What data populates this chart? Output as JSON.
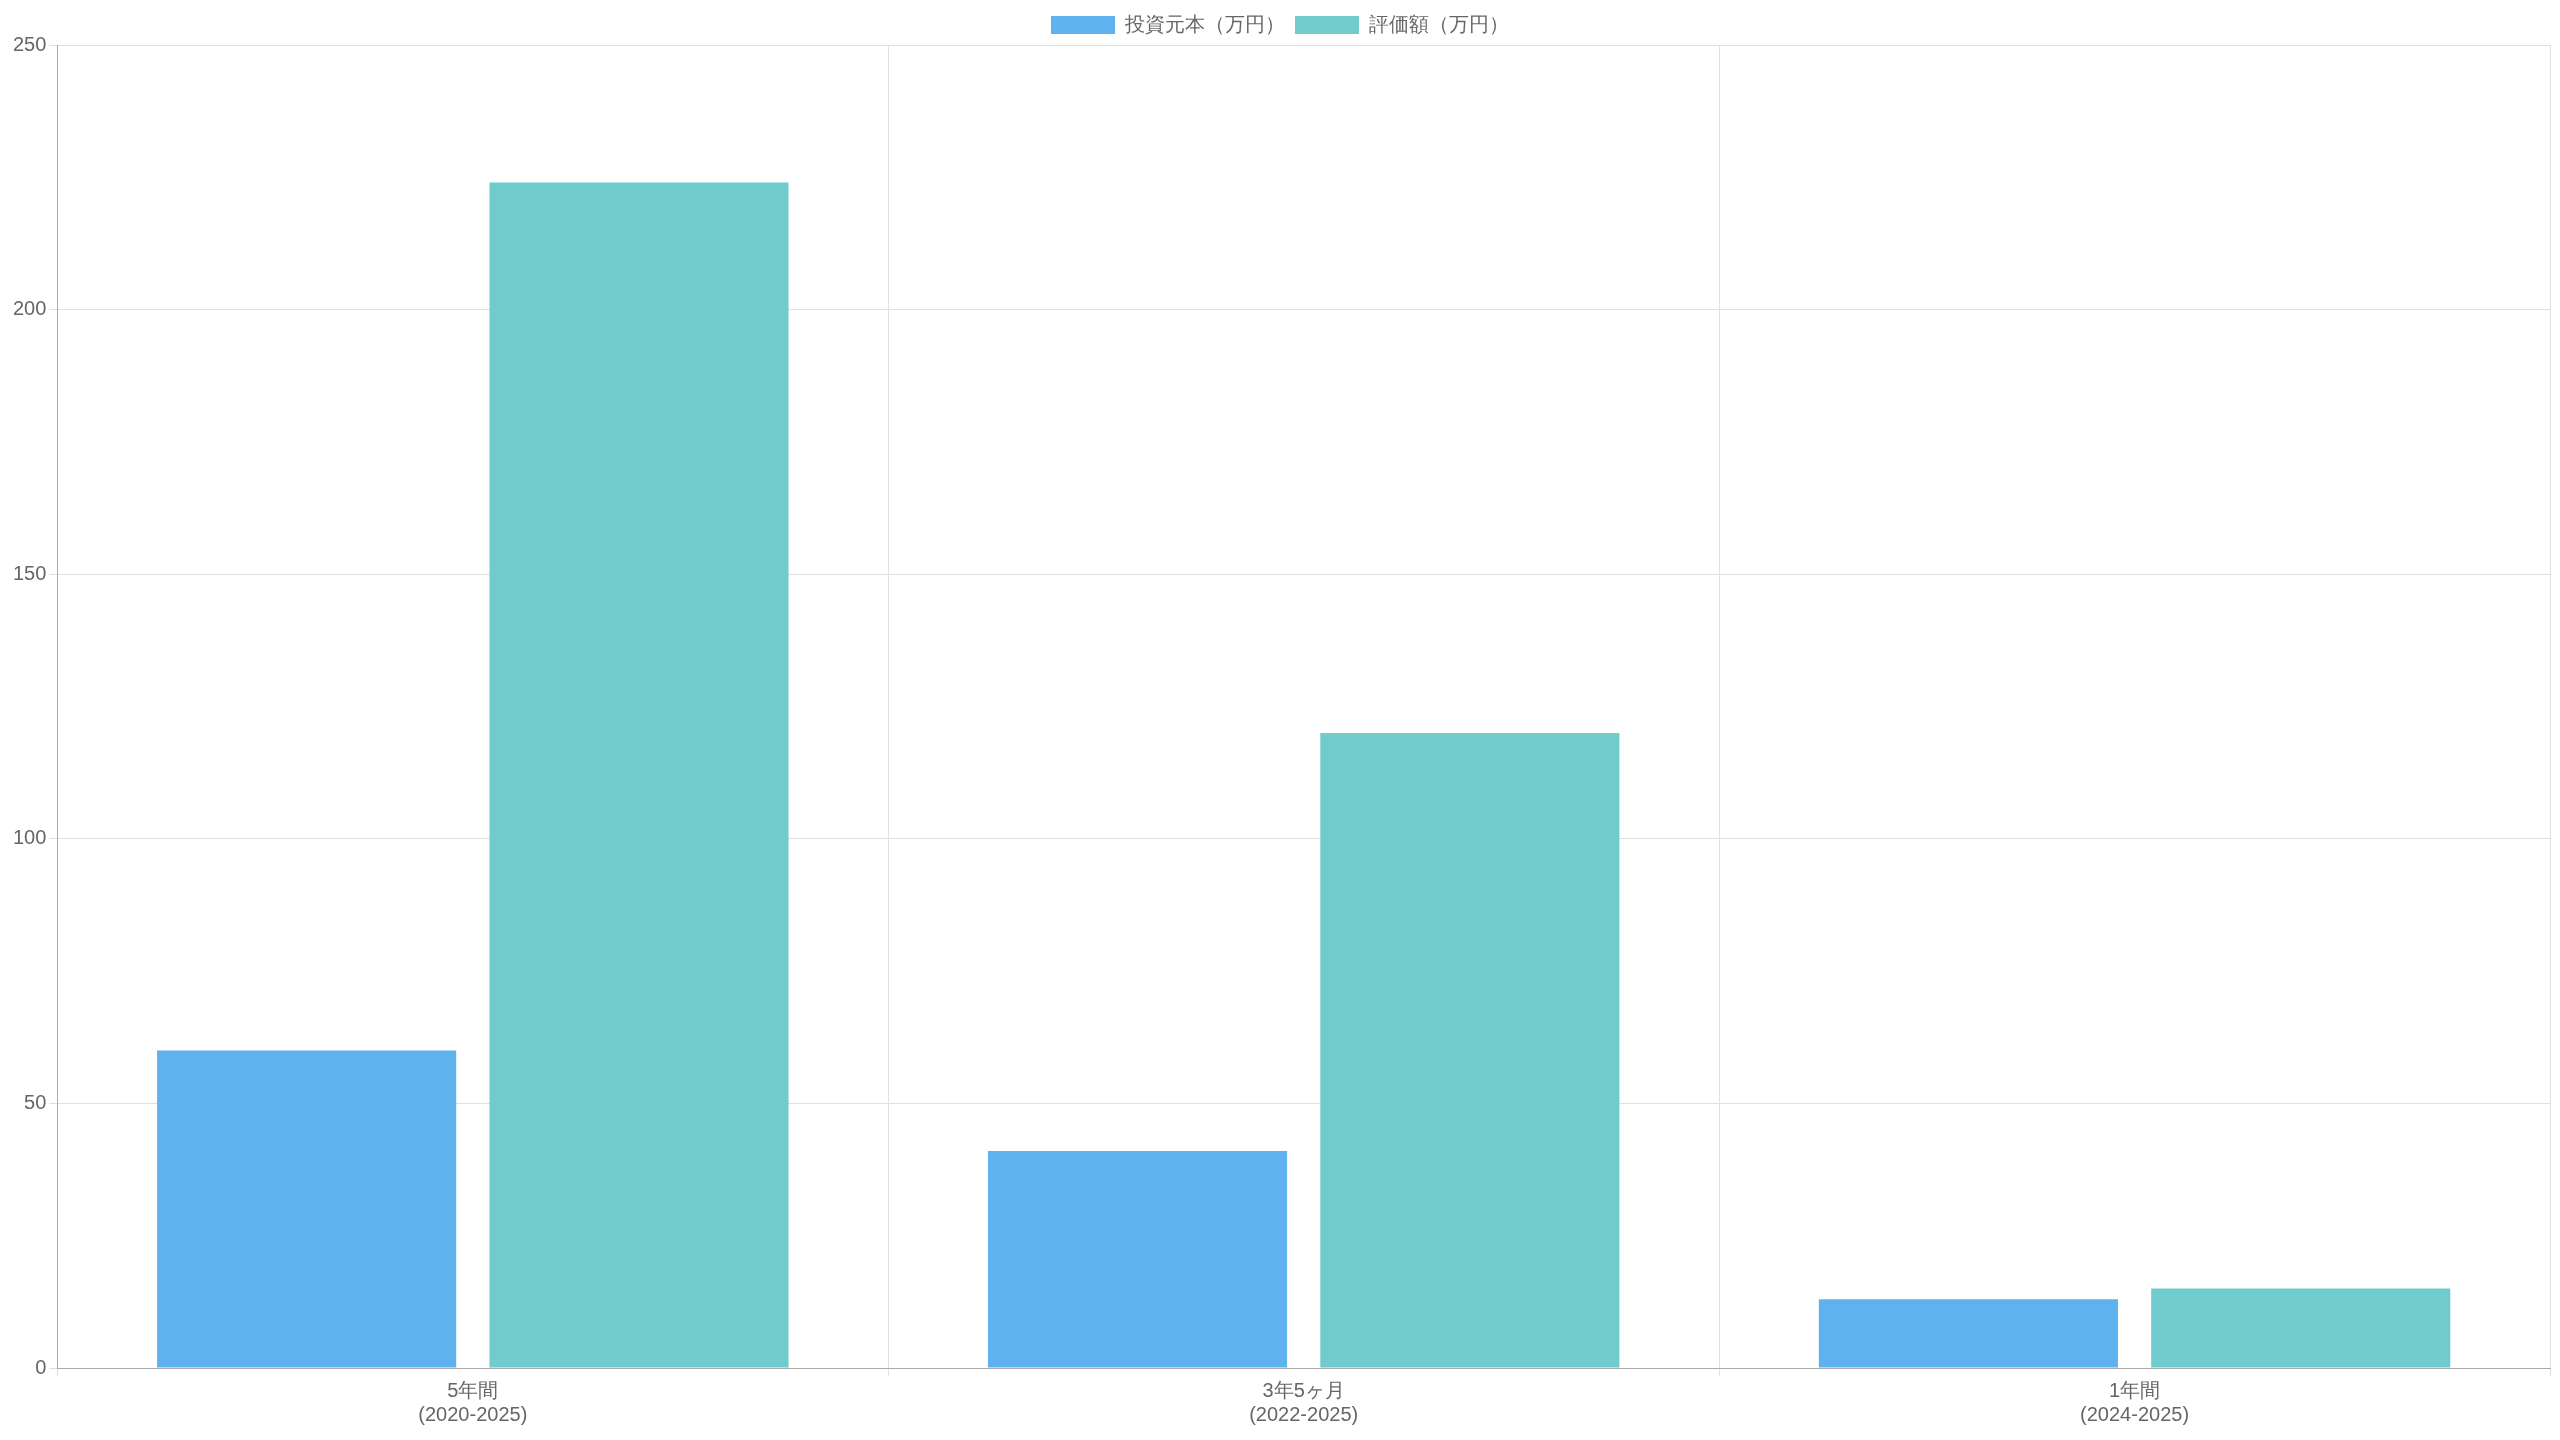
{
  "chart_data": {
    "type": "bar",
    "categories": [
      "5年間\n(2020-2025)",
      "3年5ヶ月\n(2022-2025)",
      "1年間\n(2024-2025)"
    ],
    "series": [
      {
        "name": "投資元本（万円）",
        "color": "#5eb3ee",
        "values": [
          60,
          41,
          13
        ]
      },
      {
        "name": "評価額（万円）",
        "color": "#70cccc",
        "values": [
          224,
          120,
          15
        ]
      }
    ],
    "ylim": [
      0,
      250
    ],
    "yticks": [
      0,
      50,
      100,
      150,
      200,
      250
    ],
    "grid": true,
    "legend": "top"
  }
}
